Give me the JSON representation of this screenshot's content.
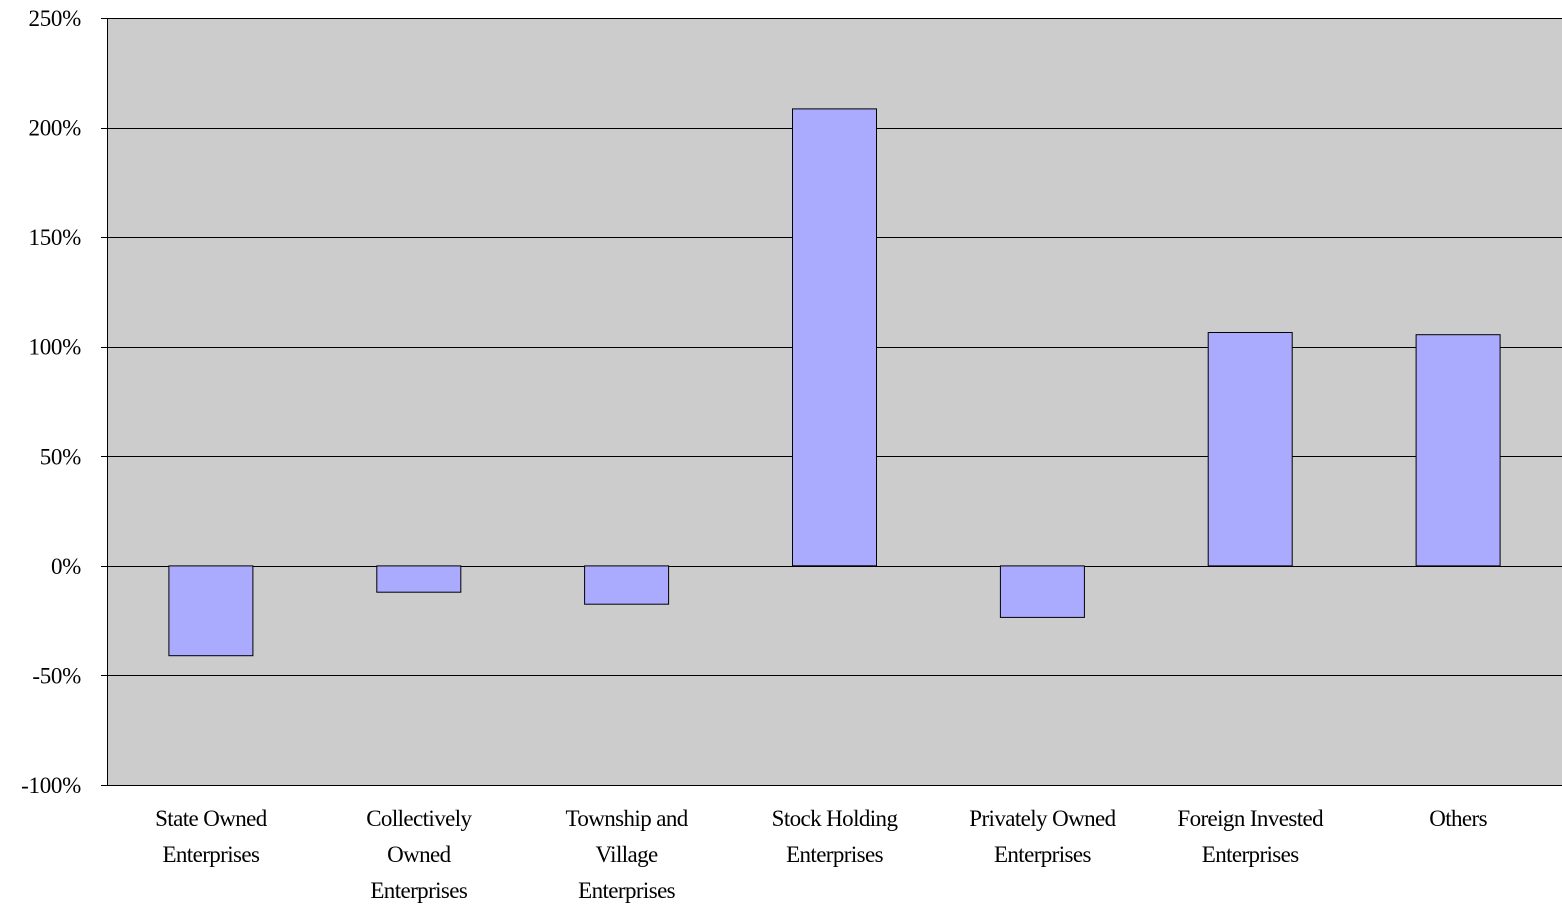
{
  "chart_data": {
    "type": "bar",
    "title": "",
    "xlabel": "",
    "ylabel": "",
    "categories": [
      [
        "State Owned",
        "Enterprises"
      ],
      [
        "Collectively",
        "Owned",
        "Enterprises"
      ],
      [
        "Township and",
        "Village",
        "Enterprises"
      ],
      [
        "Stock Holding",
        "Enterprises"
      ],
      [
        "Privately Owned",
        "Enterprises"
      ],
      [
        "Foreign Invested",
        "Enterprises"
      ],
      [
        "Others"
      ]
    ],
    "values": [
      -41,
      -12,
      -17.5,
      208.5,
      -23.5,
      106.5,
      105.5
    ],
    "ylim": [
      -100,
      250
    ],
    "yticks": [
      -100,
      -50,
      0,
      50,
      100,
      150,
      200,
      250
    ],
    "ytick_labels": [
      "-100%",
      "-50%",
      "0%",
      "50%",
      "100%",
      "150%",
      "200%",
      "250%"
    ],
    "value_format": "percent",
    "grid": true,
    "legend": "none",
    "colors": {
      "plot_background": "#cccccc",
      "bar_fill": "#aaaaff",
      "bar_stroke": "#000000",
      "gridline": "#000000",
      "axis": "#000000"
    }
  }
}
